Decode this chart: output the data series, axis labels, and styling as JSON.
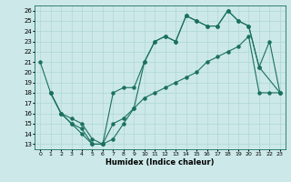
{
  "xlabel": "Humidex (Indice chaleur)",
  "background_color": "#cce8e8",
  "line_color": "#1a7060",
  "xlim": [
    -0.5,
    23.5
  ],
  "ylim": [
    12.5,
    26.5
  ],
  "xticks": [
    0,
    1,
    2,
    3,
    4,
    5,
    6,
    7,
    8,
    9,
    10,
    11,
    12,
    13,
    14,
    15,
    16,
    17,
    18,
    19,
    20,
    21,
    22,
    23
  ],
  "yticks": [
    13,
    14,
    15,
    16,
    17,
    18,
    19,
    20,
    21,
    22,
    23,
    24,
    25,
    26
  ],
  "line1_x": [
    0,
    1,
    2,
    3,
    4,
    5,
    6,
    7,
    8,
    9,
    10,
    11,
    12,
    13,
    14,
    15,
    16,
    17,
    18,
    19,
    20,
    21,
    23
  ],
  "line1_y": [
    21.0,
    18.0,
    16.0,
    15.0,
    14.0,
    13.0,
    13.0,
    15.0,
    15.5,
    16.5,
    21.0,
    23.0,
    23.5,
    23.0,
    25.5,
    25.0,
    24.5,
    24.5,
    26.0,
    25.0,
    24.5,
    20.5,
    18.0
  ],
  "line2_x": [
    1,
    2,
    3,
    4,
    5,
    6,
    7,
    8,
    9,
    10,
    11,
    12,
    13,
    14,
    15,
    16,
    17,
    18,
    19,
    20,
    21,
    22,
    23
  ],
  "line2_y": [
    18.0,
    16.0,
    15.0,
    14.5,
    13.0,
    13.0,
    18.0,
    18.5,
    18.5,
    21.0,
    23.0,
    23.5,
    23.0,
    25.5,
    25.0,
    24.5,
    24.5,
    26.0,
    25.0,
    24.5,
    20.5,
    23.0,
    18.0
  ],
  "line3_x": [
    1,
    2,
    3,
    4,
    5,
    6,
    7,
    8,
    9,
    10,
    11,
    12,
    13,
    14,
    15,
    16,
    17,
    18,
    19,
    20,
    21,
    22,
    23
  ],
  "line3_y": [
    18.0,
    16.0,
    15.5,
    15.0,
    13.5,
    13.0,
    13.5,
    15.0,
    16.5,
    17.5,
    18.0,
    18.5,
    19.0,
    19.5,
    20.0,
    21.0,
    21.5,
    22.0,
    22.5,
    23.5,
    18.0,
    18.0,
    18.0
  ]
}
